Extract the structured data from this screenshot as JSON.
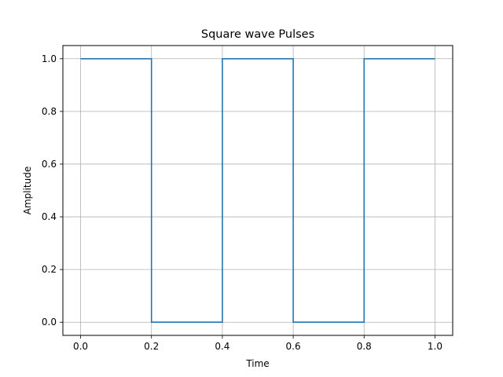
{
  "chart_data": {
    "type": "line",
    "title": "Square wave Pulses",
    "xlabel": "Time",
    "ylabel": "Amplitude",
    "xlim": [
      -0.05,
      1.05
    ],
    "ylim": [
      -0.05,
      1.05
    ],
    "x_ticks": [
      0.0,
      0.2,
      0.4,
      0.6,
      0.8,
      1.0
    ],
    "x_tick_labels": [
      "0.0",
      "0.2",
      "0.4",
      "0.6",
      "0.8",
      "1.0"
    ],
    "y_ticks": [
      0.0,
      0.2,
      0.4,
      0.6,
      0.8,
      1.0
    ],
    "y_tick_labels": [
      "0.0",
      "0.2",
      "0.4",
      "0.6",
      "0.8",
      "1.0"
    ],
    "grid": true,
    "series": [
      {
        "color": "#1f77b4",
        "x": [
          0.0,
          0.2,
          0.2,
          0.4,
          0.4,
          0.6,
          0.6,
          0.8,
          0.8,
          1.0
        ],
        "y": [
          1.0,
          1.0,
          0.0,
          0.0,
          1.0,
          1.0,
          0.0,
          0.0,
          1.0,
          1.0
        ]
      }
    ]
  }
}
